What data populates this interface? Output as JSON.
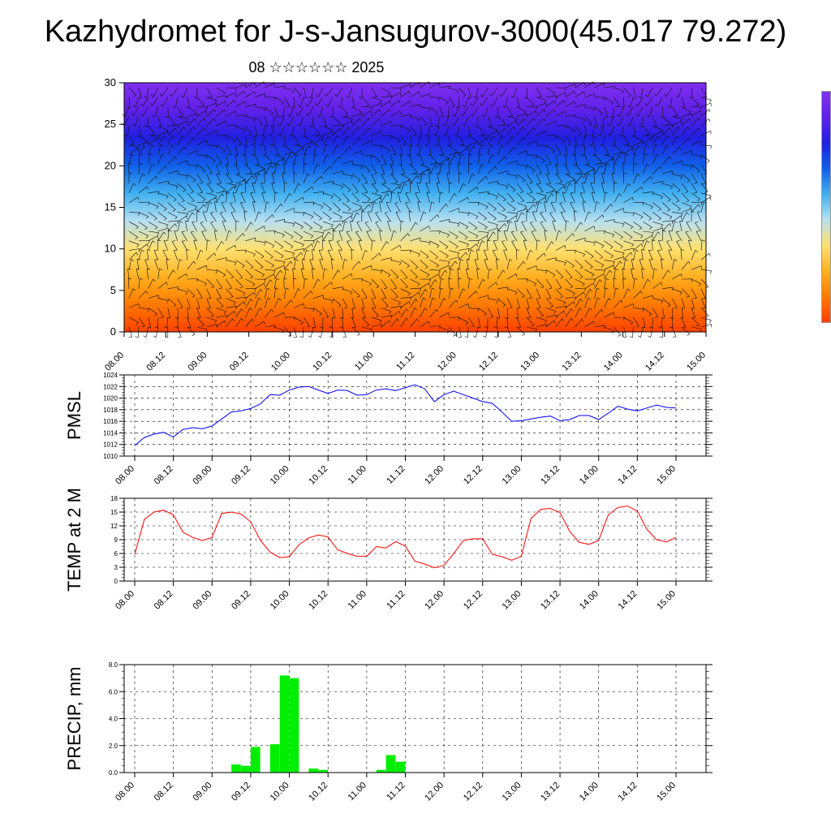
{
  "title": "Kazhydromet for J-s-Jansugurov-3000(45.017 79.272)",
  "subtitle": "08 ☆☆☆☆☆☆ 2025",
  "time_ticks": [
    "08.00",
    "08.12",
    "09.00",
    "09.12",
    "10.00",
    "10.12",
    "11.00",
    "11.12",
    "12.00",
    "12.12",
    "13.00",
    "13.12",
    "14.00",
    "14.12",
    "15.00"
  ],
  "chart_data": [
    {
      "type": "heatmap",
      "title": "",
      "ylabel": "",
      "ylim": [
        0,
        30
      ],
      "yticks": [
        0,
        5,
        10,
        15,
        20,
        25,
        30
      ],
      "colormap": [
        "#ff4000",
        "#ff7a00",
        "#ffb020",
        "#ffe070",
        "#b8e0f0",
        "#40b0f0",
        "#1060e8",
        "#2020e0",
        "#6020e8",
        "#8030f0"
      ],
      "note_fields": "vertical cross-section colour field with wind barbs"
    },
    {
      "type": "line",
      "ylabel": "PMSL",
      "ylim": [
        1010,
        1024
      ],
      "yticks": [
        "1010",
        "1012",
        "1014",
        "1016",
        "1018",
        "1020",
        "1022",
        "1024"
      ],
      "color": "#0000ff",
      "x_hours": [
        0,
        3,
        6,
        9,
        12,
        15,
        18,
        21,
        24,
        27,
        30,
        33,
        36,
        39,
        42,
        45,
        48,
        51,
        54,
        57,
        60,
        63,
        66,
        69,
        72,
        75,
        78,
        81,
        84,
        87,
        90,
        93,
        96,
        99,
        102,
        105,
        108,
        111,
        114,
        117,
        120,
        123,
        126,
        129,
        132,
        135,
        138,
        141,
        144,
        147,
        150,
        153,
        156,
        159,
        162,
        165,
        168
      ],
      "values": [
        1011.8,
        1013.2,
        1013.8,
        1014.1,
        1013.3,
        1014.6,
        1014.9,
        1014.7,
        1015.2,
        1016.4,
        1017.6,
        1017.8,
        1018.2,
        1019.0,
        1020.6,
        1020.5,
        1021.4,
        1021.9,
        1022.0,
        1021.4,
        1020.8,
        1021.4,
        1021.3,
        1020.5,
        1020.6,
        1021.4,
        1021.6,
        1021.3,
        1021.8,
        1022.3,
        1021.6,
        1019.4,
        1020.6,
        1021.2,
        1020.6,
        1020.0,
        1019.4,
        1019.1,
        1017.6,
        1016.0,
        1016.1,
        1016.4,
        1016.7,
        1016.9,
        1016.1,
        1016.3,
        1017.0,
        1017.0,
        1016.3,
        1017.4,
        1018.6,
        1018.1,
        1017.8,
        1018.3,
        1018.8,
        1018.4,
        1018.3
      ]
    },
    {
      "type": "line",
      "ylabel": "TEMP at 2 M",
      "ylim": [
        0,
        18
      ],
      "yticks": [
        "0",
        "3",
        "6",
        "9",
        "12",
        "15",
        "18"
      ],
      "color": "#ff0000",
      "x_hours": [
        0,
        3,
        6,
        9,
        12,
        15,
        18,
        21,
        24,
        27,
        30,
        33,
        36,
        39,
        42,
        45,
        48,
        51,
        54,
        57,
        60,
        63,
        66,
        69,
        72,
        75,
        78,
        81,
        84,
        87,
        90,
        93,
        96,
        99,
        102,
        105,
        108,
        111,
        114,
        117,
        120,
        123,
        126,
        129,
        132,
        135,
        138,
        141,
        144,
        147,
        150,
        153,
        156,
        159,
        162,
        165,
        168
      ],
      "values": [
        5.8,
        13.4,
        15.0,
        15.4,
        14.4,
        10.6,
        9.5,
        8.8,
        9.5,
        14.7,
        15.0,
        14.6,
        12.9,
        8.9,
        6.3,
        5.1,
        5.3,
        7.9,
        9.4,
        10.0,
        9.6,
        6.8,
        6.0,
        5.4,
        5.4,
        7.5,
        7.2,
        8.6,
        7.6,
        4.3,
        3.7,
        2.9,
        3.4,
        6.0,
        8.8,
        9.2,
        9.2,
        5.8,
        5.3,
        4.5,
        5.4,
        13.6,
        15.6,
        15.8,
        14.9,
        10.8,
        8.4,
        8.0,
        8.8,
        14.4,
        16.0,
        16.3,
        15.2,
        11.2,
        9.0,
        8.5,
        9.5
      ]
    },
    {
      "type": "bar",
      "ylabel": "PRECIP, mm",
      "ylim": [
        0,
        8
      ],
      "yticks": [
        "0.0",
        "2.0",
        "4.0",
        "6.0",
        "8.0"
      ],
      "color": "#00ee00",
      "x_hours": [
        0,
        3,
        6,
        9,
        12,
        15,
        18,
        21,
        24,
        27,
        30,
        33,
        36,
        39,
        42,
        45,
        48,
        51,
        54,
        57,
        60,
        63,
        66,
        69,
        72,
        75,
        78,
        81,
        84,
        87,
        90,
        93,
        96,
        99,
        102,
        105,
        108,
        111,
        114,
        117,
        120,
        123,
        126,
        129,
        132,
        135,
        138,
        141,
        144,
        147,
        150,
        153,
        156,
        159,
        162,
        165
      ],
      "values": [
        0,
        0,
        0,
        0,
        0,
        0,
        0,
        0,
        0,
        0,
        0.6,
        0.5,
        1.9,
        0,
        2.1,
        7.2,
        7.0,
        0,
        0.3,
        0.2,
        0,
        0,
        0,
        0,
        0,
        0.2,
        1.3,
        0.8,
        0,
        0,
        0,
        0,
        0,
        0,
        0,
        0,
        0,
        0,
        0,
        0,
        0,
        0,
        0,
        0,
        0,
        0,
        0,
        0,
        0,
        0,
        0,
        0,
        0,
        0,
        0,
        0
      ]
    }
  ]
}
